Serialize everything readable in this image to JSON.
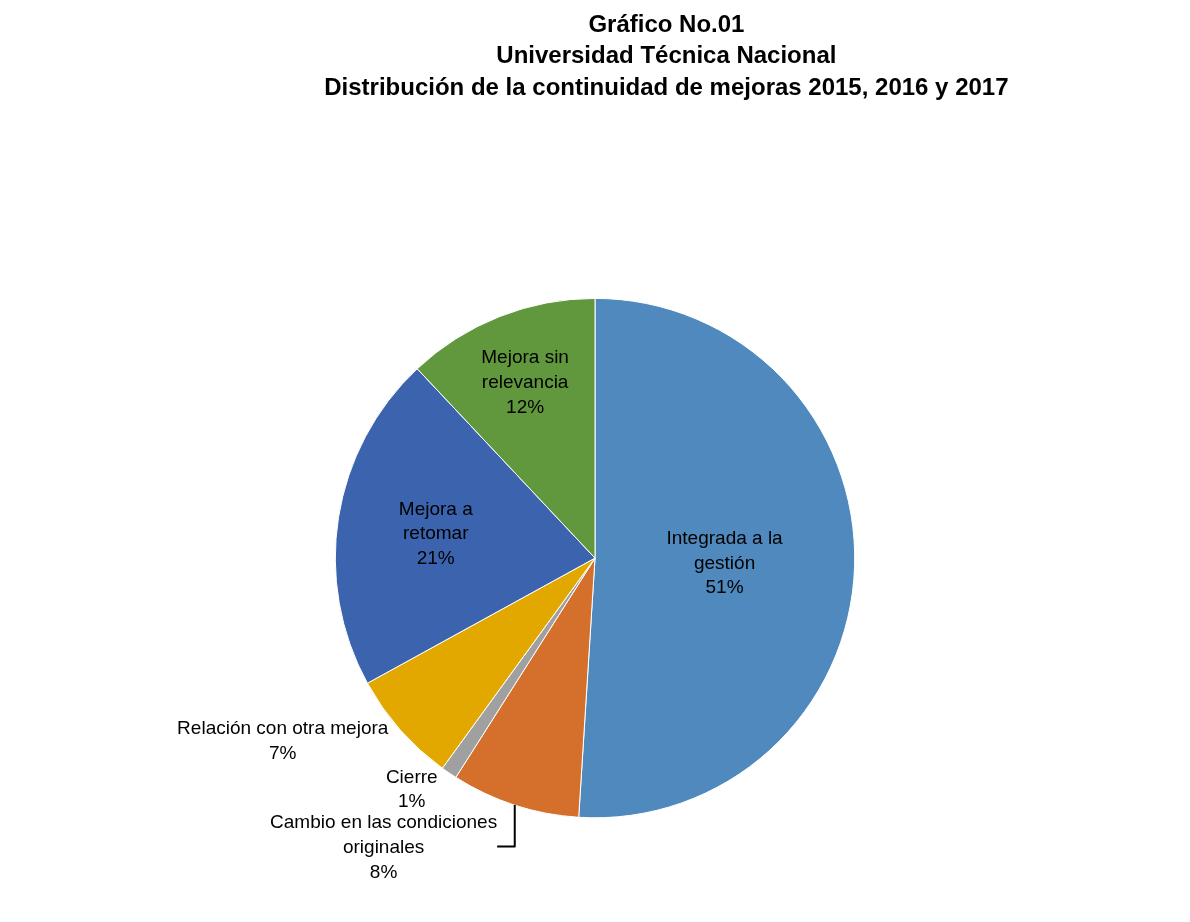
{
  "chart_data": {
    "type": "pie",
    "title": "Gráfico No.01\nUniversidad Técnica Nacional\nDistribución de la continuidad de mejoras 2015, 2016 y 2017",
    "categories": [
      "Integrada a la gestión",
      "Cambio en las condiciones originales",
      "Cierre",
      "Relación con otra mejora",
      "Mejora a retomar",
      "Mejora sin relevancia"
    ],
    "values": [
      51,
      8,
      1,
      7,
      21,
      12
    ],
    "value_labels": [
      "51%",
      "8%",
      "1%",
      "7%",
      "21%",
      "12%"
    ],
    "colors": [
      "#4f89bd",
      "#d4702b",
      "#a0a0a0",
      "#e2a800",
      "#3c63ad",
      "#61983e"
    ],
    "legend": false
  }
}
